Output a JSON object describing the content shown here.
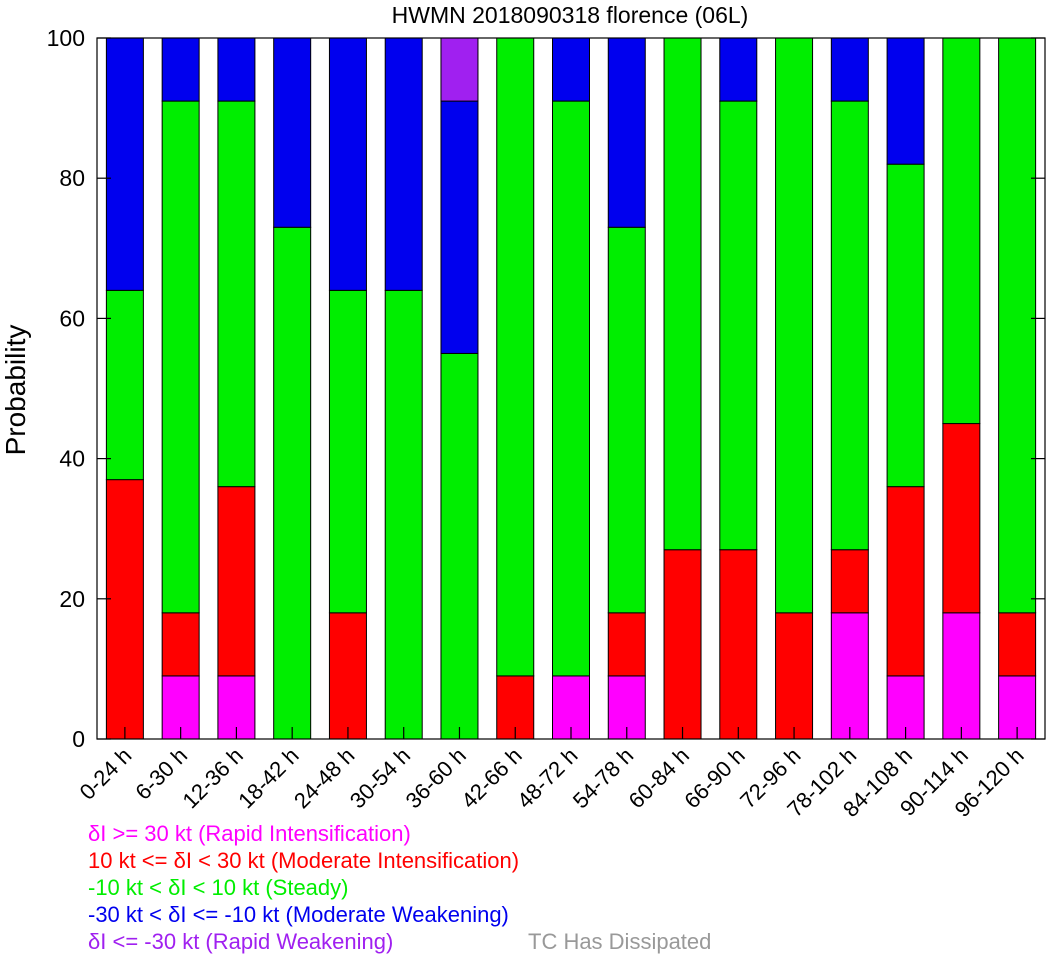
{
  "chart_data": {
    "type": "bar",
    "stacked": true,
    "title": "HWMN 2018090318 florence (06L)",
    "ylabel": "Probability",
    "xlabel": "",
    "ylim": [
      0,
      100
    ],
    "yticks": [
      "0",
      "20",
      "40",
      "60",
      "80",
      "100"
    ],
    "categories": [
      "0-24 h",
      "6-30 h",
      "12-36 h",
      "18-42 h",
      "24-48 h",
      "30-54 h",
      "36-60 h",
      "42-66 h",
      "48-72 h",
      "54-78 h",
      "60-84 h",
      "66-90 h",
      "72-96 h",
      "78-102 h",
      "84-108 h",
      "90-114 h",
      "96-120 h"
    ],
    "series": [
      {
        "name": "δI >= 30 kt (Rapid Intensification)",
        "color": "#ff00ff",
        "values": [
          0,
          9,
          9,
          0,
          0,
          0,
          0,
          0,
          9,
          9,
          0,
          0,
          0,
          18,
          9,
          18,
          9
        ]
      },
      {
        "name": "10 kt <= δI < 30 kt (Moderate Intensification)",
        "color": "#ff0000",
        "values": [
          37,
          9,
          27,
          0,
          18,
          0,
          0,
          9,
          0,
          9,
          27,
          27,
          18,
          9,
          27,
          27,
          9
        ]
      },
      {
        "name": "-10 kt < δI < 10 kt (Steady)",
        "color": "#00ee00",
        "values": [
          27,
          73,
          55,
          73,
          46,
          64,
          55,
          91,
          82,
          55,
          73,
          64,
          82,
          64,
          46,
          55,
          82
        ]
      },
      {
        "name": "-30 kt < δI <= -10 kt (Moderate Weakening)",
        "color": "#0000ee",
        "values": [
          36,
          9,
          9,
          27,
          36,
          36,
          36,
          0,
          9,
          27,
          0,
          9,
          0,
          9,
          18,
          0,
          0
        ]
      },
      {
        "name": "δI <= -30 kt (Rapid Weakening)",
        "color": "#a020f0",
        "values": [
          0,
          0,
          0,
          0,
          0,
          0,
          9,
          0,
          0,
          0,
          0,
          0,
          0,
          0,
          0,
          0,
          0
        ]
      }
    ],
    "legend_extra": {
      "label": "TC Has Dissipated",
      "color": "#999999"
    },
    "grid": false,
    "legend_position": "bottom-left"
  }
}
